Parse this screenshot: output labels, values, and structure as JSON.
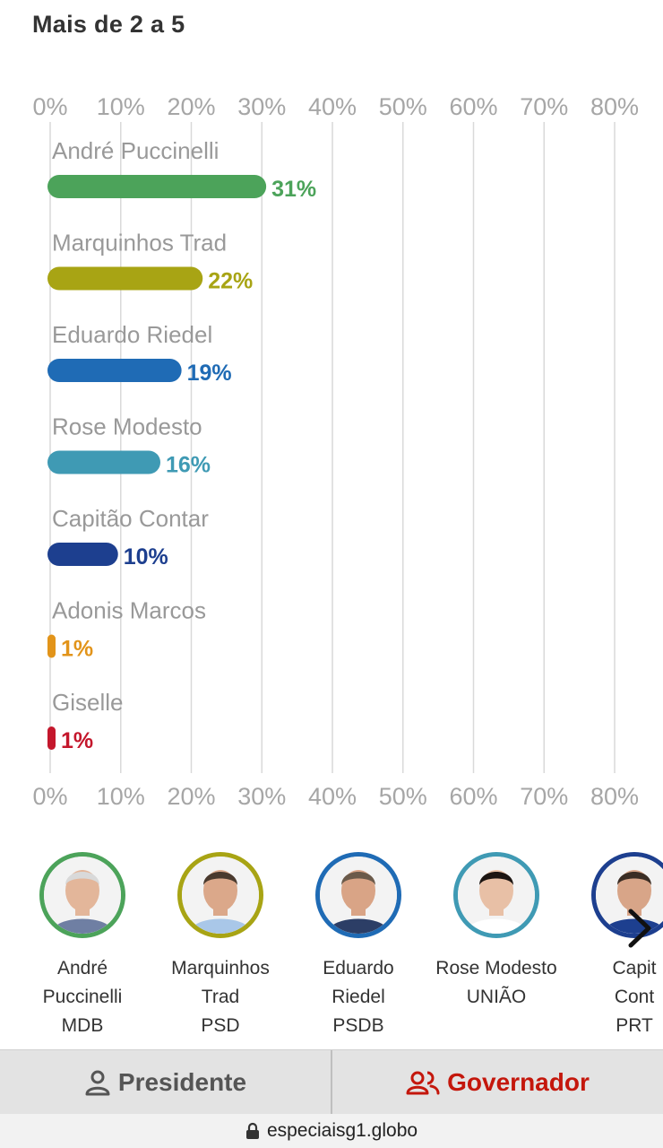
{
  "section_title": "Mais de 2 a 5",
  "chart_data": {
    "type": "bar",
    "orientation": "horizontal",
    "xlim": [
      0,
      80
    ],
    "tick_labels": [
      "0%",
      "10%",
      "20%",
      "30%",
      "40%",
      "50%",
      "60%",
      "70%",
      "80%"
    ],
    "grid": true,
    "categories": [
      "André Puccinelli",
      "Marquinhos Trad",
      "Eduardo Riedel",
      "Rose Modesto",
      "Capitão Contar",
      "Adonis Marcos",
      "Giselle"
    ],
    "values": [
      31,
      22,
      19,
      16,
      10,
      1,
      1
    ],
    "value_labels": [
      "31%",
      "22%",
      "19%",
      "16%",
      "10%",
      "1%",
      "1%"
    ],
    "colors": [
      "#4ca35a",
      "#a8a414",
      "#1f6bb5",
      "#3f9ab4",
      "#1d3f8f",
      "#e2941a",
      "#c4172c"
    ]
  },
  "candidates": [
    {
      "name_line1": "André",
      "name_line2": "Puccinelli",
      "party": "MDB",
      "color": "#4ca35a"
    },
    {
      "name_line1": "Marquinhos",
      "name_line2": "Trad",
      "party": "PSD",
      "color": "#a8a414"
    },
    {
      "name_line1": "Eduardo",
      "name_line2": "Riedel",
      "party": "PSDB",
      "color": "#1f6bb5"
    },
    {
      "name_line1": "Rose Modesto",
      "name_line2": "UNIÃO",
      "party": "",
      "color": "#3f9ab4"
    },
    {
      "name_line1": "Capit",
      "name_line2": "Cont",
      "party": "PRT",
      "color": "#1d3f8f"
    }
  ],
  "tabs": {
    "presidente": "Presidente",
    "governador": "Governador",
    "active": "governador",
    "active_color": "#c4170c"
  },
  "url_bar": {
    "url": "especiaisg1.globo",
    "icon": "lock-icon"
  }
}
